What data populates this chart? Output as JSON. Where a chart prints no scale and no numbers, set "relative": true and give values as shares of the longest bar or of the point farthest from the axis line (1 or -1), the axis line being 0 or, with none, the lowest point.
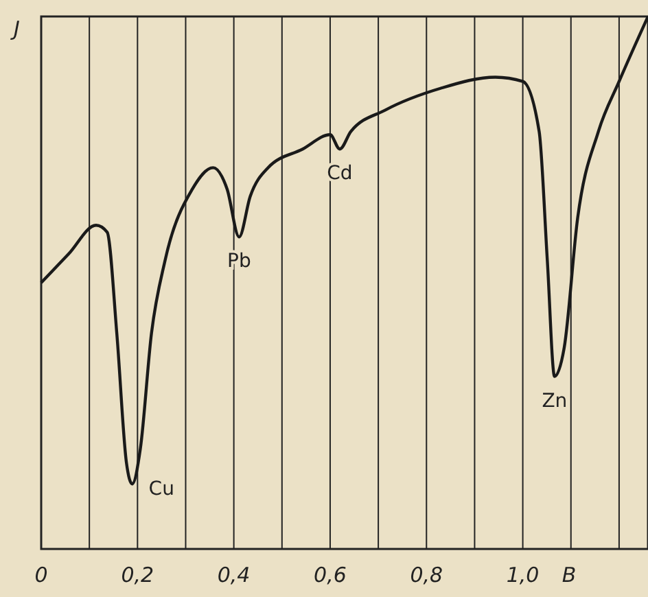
{
  "chart_data": {
    "type": "line",
    "relative": true,
    "ylabel": "J",
    "xlabel": "B",
    "grid": "x",
    "xlim": [
      0,
      1.26
    ],
    "xticks": [
      0,
      {
        "value": 0.1,
        "label": null
      },
      {
        "value": 0.2,
        "label": "0,2"
      },
      {
        "value": 0.3,
        "label": null
      },
      {
        "value": 0.4,
        "label": "0,4"
      },
      {
        "value": 0.5,
        "label": null
      },
      {
        "value": 0.6,
        "label": "0,6"
      },
      {
        "value": 0.7,
        "label": null
      },
      {
        "value": 0.8,
        "label": "0,8"
      },
      {
        "value": 0.9,
        "label": null
      },
      {
        "value": 1.0,
        "label": "1,0"
      },
      {
        "value": 1.1,
        "label": null
      },
      {
        "value": 1.2,
        "label": null
      }
    ],
    "series": [
      {
        "color": "#1a1a1a",
        "x": [
          0,
          0.057,
          0.114,
          0.137,
          0.157,
          0.177,
          0.189,
          0.206,
          0.229,
          0.257,
          0.314,
          0.357,
          0.386,
          0.411,
          0.434,
          0.471,
          0.543,
          0.6,
          0.62,
          0.643,
          0.714,
          0.829,
          0.943,
          1.0,
          1.034,
          1.051,
          1.066,
          1.086,
          1.114,
          1.157,
          1.2,
          1.26
        ],
        "values": [
          0.5,
          0.554,
          0.608,
          0.595,
          0.405,
          0.162,
          0.122,
          0.189,
          0.405,
          0.541,
          0.676,
          0.716,
          0.676,
          0.586,
          0.662,
          0.716,
          0.751,
          0.778,
          0.751,
          0.784,
          0.824,
          0.865,
          0.886,
          0.878,
          0.784,
          0.541,
          0.324,
          0.378,
          0.622,
          0.784,
          0.878,
          1.0
        ]
      }
    ],
    "annotations": [
      {
        "text": "Cu",
        "x": 0.189,
        "y": 0.122
      },
      {
        "text": "Pb",
        "x": 0.411,
        "y": 0.586
      },
      {
        "text": "Cd",
        "x": 0.62,
        "y": 0.751
      },
      {
        "text": "Zn",
        "x": 1.066,
        "y": 0.324
      }
    ]
  }
}
